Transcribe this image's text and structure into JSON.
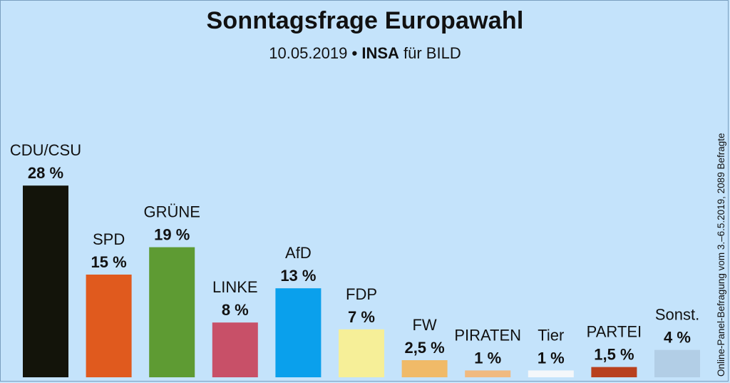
{
  "chart_data": {
    "type": "bar",
    "title": "Sonntagsfrage Europawahl",
    "subtitle": {
      "date": "10.05.2019",
      "bullet": "•",
      "pollster": "INSA",
      "client": "für BILD"
    },
    "source_note": "Online-Panel-Befragung vom 3.–6.5.2019, 2089 Befragte",
    "categories": [
      "CDU/CSU",
      "SPD",
      "GRÜNE",
      "LINKE",
      "AfD",
      "FDP",
      "FW",
      "PIRATEN",
      "Tier",
      "PARTEI",
      "Sonst."
    ],
    "values": [
      28,
      15,
      19,
      8,
      13,
      7,
      2.5,
      1,
      1,
      1.5,
      4
    ],
    "value_labels": [
      "28 %",
      "15 %",
      "19 %",
      "8 %",
      "13 %",
      "7 %",
      "2,5 %",
      "1 %",
      "1 %",
      "1,5 %",
      "4 %"
    ],
    "colors": [
      "#13140a",
      "#e05a1e",
      "#5e9b33",
      "#c85068",
      "#0aa0ec",
      "#f6ef98",
      "#f0ba68",
      "#f0ba80",
      "#f4f7fa",
      "#b8401e",
      "#b2cee6"
    ],
    "xlabel": "",
    "ylabel": "",
    "grid": false,
    "legend": "none"
  }
}
